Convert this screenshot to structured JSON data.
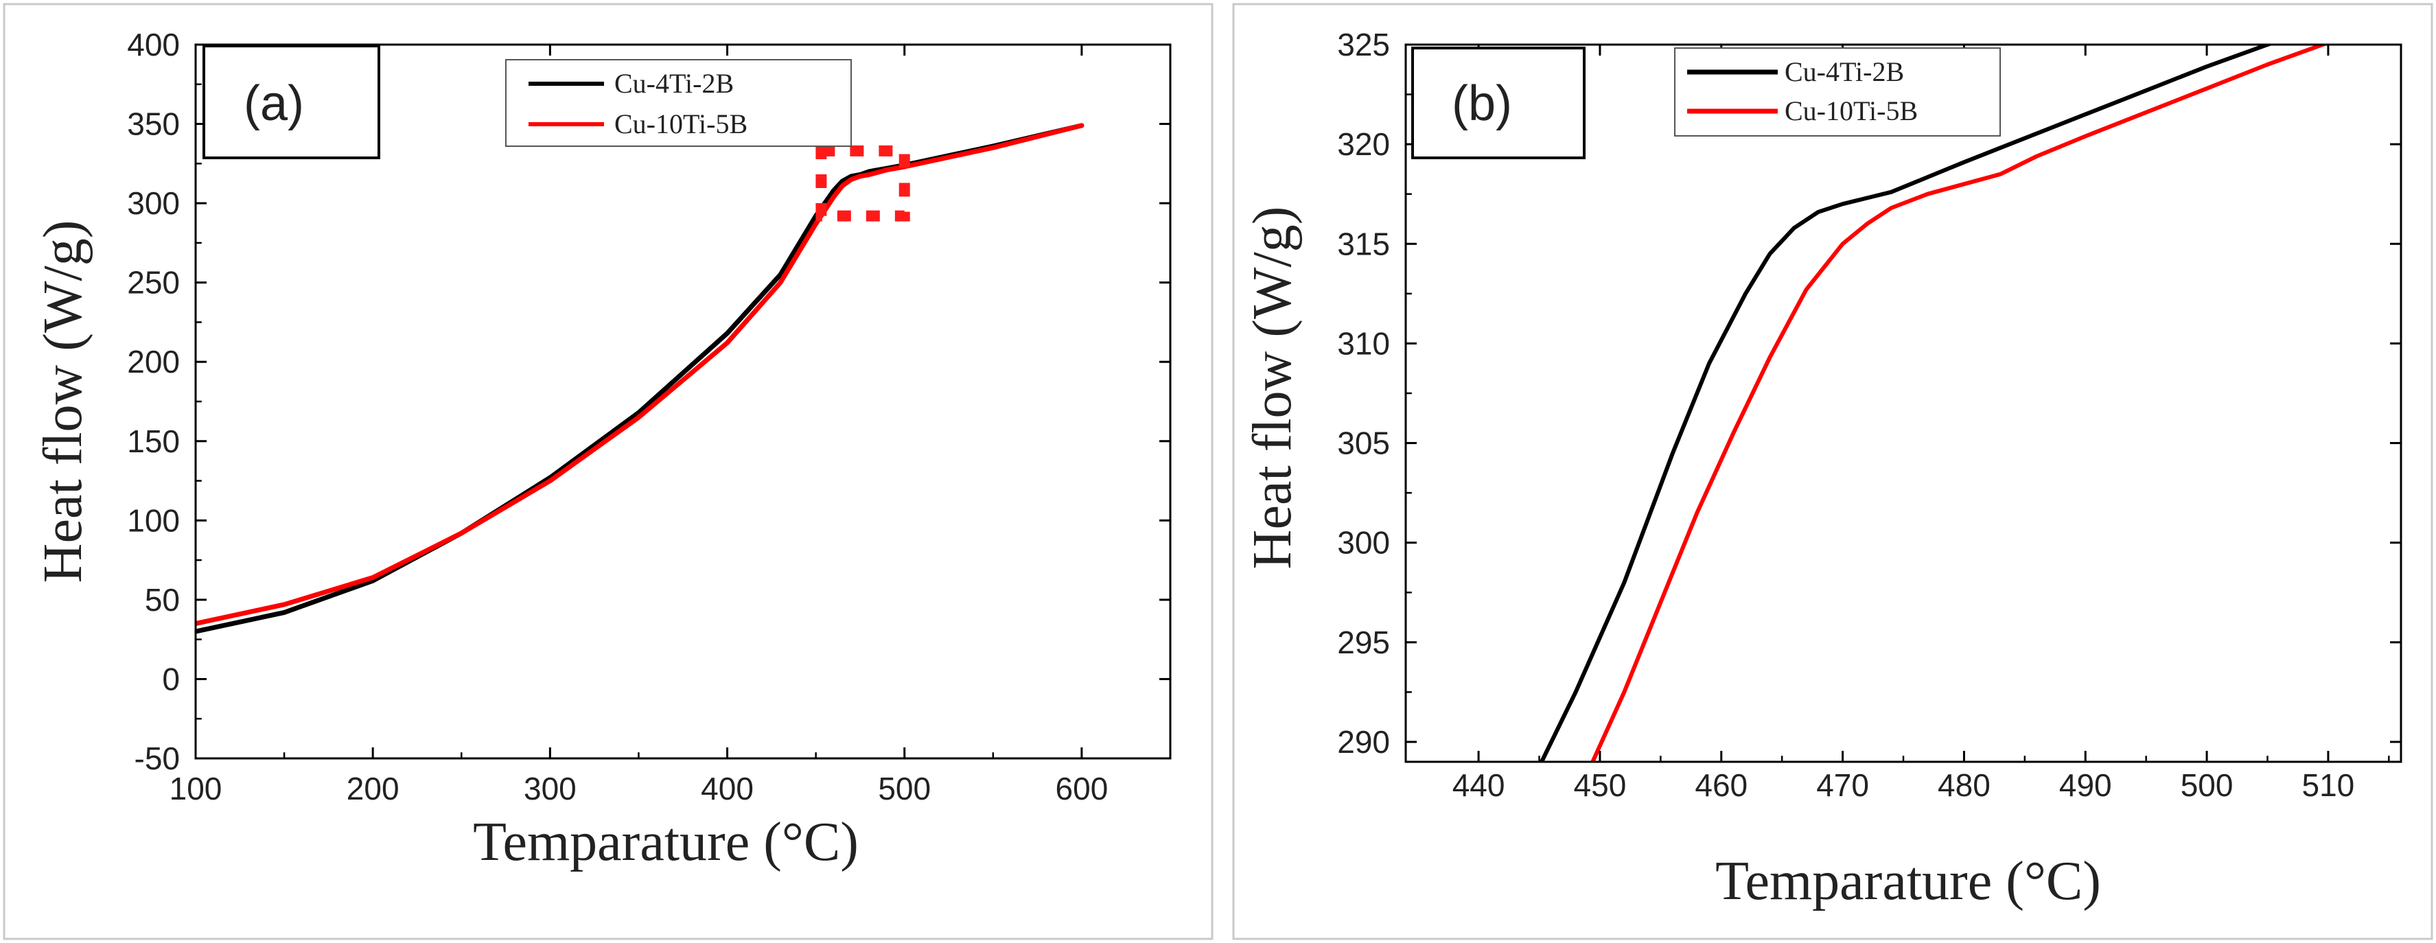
{
  "chart_data": [
    {
      "type": "line",
      "panel_label": "(a)",
      "xlabel": "Temparature (°C)",
      "ylabel": "Heat flow (W/g)",
      "xlim": [
        100,
        650
      ],
      "ylim": [
        -50,
        400
      ],
      "xticks": [
        100,
        200,
        300,
        400,
        500,
        600
      ],
      "yticks": [
        -50,
        0,
        50,
        100,
        150,
        200,
        250,
        300,
        350,
        400
      ],
      "legend_position": "top-center",
      "highlight_region": {
        "x": [
          453,
          500
        ],
        "y": [
          292,
          333
        ],
        "style": "red dashed box"
      },
      "series": [
        {
          "name": "Cu-4Ti-2B",
          "color": "#000000",
          "x": [
            100,
            150,
            200,
            250,
            300,
            350,
            400,
            430,
            450,
            460,
            465,
            470,
            475,
            480,
            490,
            500,
            550,
            600
          ],
          "y": [
            30,
            42,
            62,
            92,
            127,
            168,
            218,
            255,
            292,
            308,
            314,
            317,
            318,
            320,
            322,
            324,
            336,
            349
          ]
        },
        {
          "name": "Cu-10Ti-5B",
          "color": "#ff0000",
          "x": [
            100,
            150,
            200,
            250,
            300,
            350,
            400,
            430,
            450,
            460,
            465,
            470,
            475,
            480,
            490,
            500,
            550,
            600
          ],
          "y": [
            35,
            47,
            64,
            92,
            125,
            165,
            212,
            250,
            287,
            304,
            311,
            315,
            317,
            318,
            321,
            323,
            335,
            349
          ]
        }
      ]
    },
    {
      "type": "line",
      "panel_label": "(b)",
      "xlabel": "Temparature (°C)",
      "ylabel": "Heat flow (W/g)",
      "xlim": [
        434,
        516
      ],
      "ylim": [
        289,
        325
      ],
      "xticks": [
        440,
        450,
        460,
        470,
        480,
        490,
        500,
        510
      ],
      "yticks": [
        290,
        295,
        300,
        305,
        310,
        315,
        320,
        325
      ],
      "legend_position": "top-left",
      "series": [
        {
          "name": "Cu-4Ti-2B",
          "color": "#000000",
          "x": [
            445.2,
            448,
            452,
            456,
            459,
            462,
            464,
            466,
            468,
            470,
            472,
            474,
            476,
            480,
            485,
            490,
            495,
            500,
            505,
            506
          ],
          "y": [
            289,
            292.5,
            298,
            304.5,
            309,
            312.5,
            314.5,
            315.8,
            316.6,
            317.0,
            317.3,
            317.6,
            318.1,
            319.1,
            320.3,
            321.5,
            322.7,
            323.9,
            325.0,
            325.2
          ]
        },
        {
          "name": "Cu-10Ti-5B",
          "color": "#ff0000",
          "x": [
            449.4,
            452,
            455,
            458,
            461,
            464,
            467,
            470,
            472,
            474,
            477,
            480,
            483,
            486,
            490,
            495,
            500,
            505,
            510,
            512
          ],
          "y": [
            289,
            292.5,
            297,
            301.5,
            305.5,
            309.3,
            312.7,
            315.0,
            316.0,
            316.8,
            317.5,
            318.0,
            318.5,
            319.4,
            320.4,
            321.6,
            322.8,
            324.0,
            325.1,
            325.5
          ]
        }
      ]
    }
  ]
}
